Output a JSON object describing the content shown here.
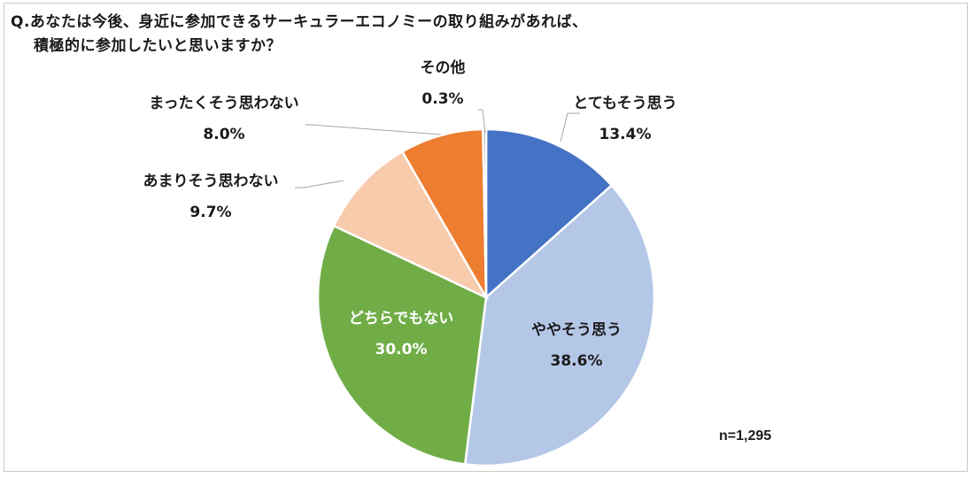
{
  "question": {
    "line1": "Q.あなたは今後、身近に参加できるサーキュラーエコノミーの取り組みがあれば、",
    "line2": "積極的に参加したいと思いますか？"
  },
  "sample_size": "n=1,295",
  "chart_data": {
    "type": "pie",
    "start_angle_deg": 0,
    "direction": "clockwise",
    "slices": [
      {
        "label": "とてもそう思う",
        "value": 13.4,
        "value_text": "13.4%",
        "color": "#4472c4",
        "label_inside": false,
        "label_color": "#1a1a1a"
      },
      {
        "label": "ややそう思う",
        "value": 38.6,
        "value_text": "38.6%",
        "color": "#b4c7e7",
        "label_inside": true,
        "label_color": "#1a1a1a"
      },
      {
        "label": "どちらでもない",
        "value": 30.0,
        "value_text": "30.0%",
        "color": "#70ad47",
        "label_inside": true,
        "label_color": "#ffffff"
      },
      {
        "label": "あまりそう思わない",
        "value": 9.7,
        "value_text": "9.7%",
        "color": "#f8cbad",
        "label_inside": false,
        "label_color": "#1a1a1a"
      },
      {
        "label": "まったくそう思わない",
        "value": 8.0,
        "value_text": "8.0%",
        "color": "#ed7d31",
        "label_inside": false,
        "label_color": "#1a1a1a"
      },
      {
        "label": "その他",
        "value": 0.3,
        "value_text": "0.3%",
        "color": "#a5a5a5",
        "label_inside": false,
        "label_color": "#1a1a1a"
      }
    ]
  }
}
